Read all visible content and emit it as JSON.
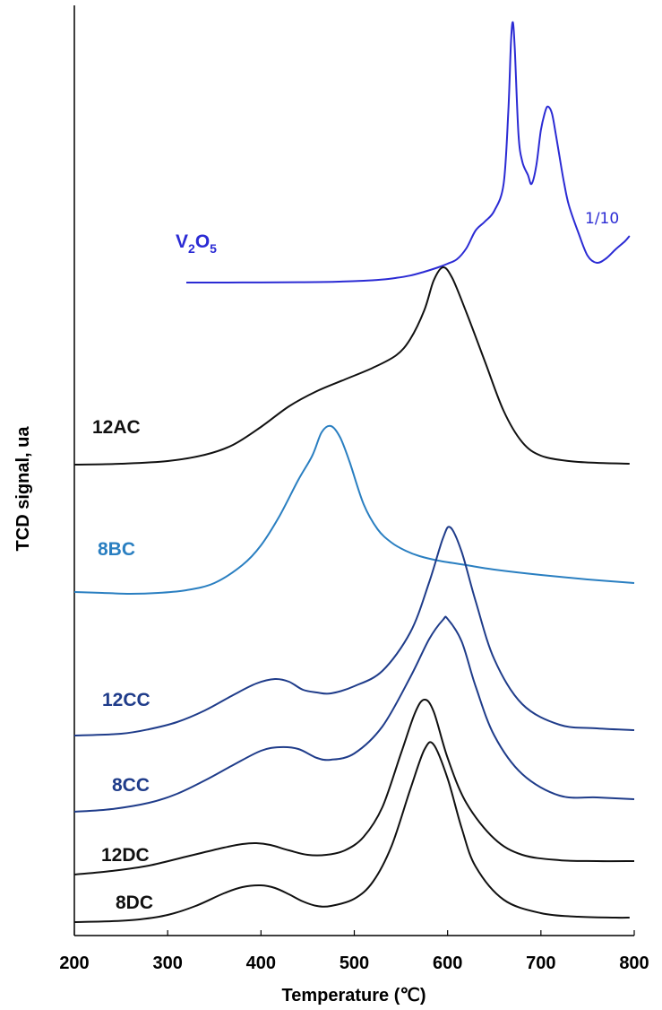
{
  "chart_data": {
    "type": "line",
    "title": "",
    "xlabel": "Temperature (℃)",
    "ylabel": "TCD signal, ua",
    "xlim": [
      200,
      800
    ],
    "xticks": [
      "200",
      "300",
      "400",
      "500",
      "600",
      "700",
      "800"
    ],
    "y_ticks_shown": false,
    "grid": false,
    "legend": "none",
    "series": [
      {
        "name": "V2O5",
        "label_main": "V",
        "label_sub1": "2",
        "label_mid": "O",
        "label_sub2": "5",
        "scale_note": "1/10",
        "color": "#2b2bd4",
        "x": [
          320,
          380,
          440,
          480,
          510,
          530,
          545,
          560,
          575,
          590,
          600,
          610,
          620,
          630,
          640,
          650,
          660,
          665,
          668,
          670,
          672,
          676,
          680,
          686,
          690,
          695,
          700,
          705,
          708,
          712,
          716,
          720,
          725,
          730,
          740,
          750,
          760,
          770,
          780,
          790,
          795
        ],
        "y": [
          0,
          0.1,
          0.35,
          0.9,
          2.0,
          3.4,
          5.2,
          7.8,
          12.0,
          17.0,
          21.0,
          26.0,
          38.0,
          58.0,
          68.0,
          80.0,
          110.0,
          190.0,
          270.0,
          290.0,
          260.0,
          165.0,
          135.0,
          120.0,
          110.0,
          130.0,
          170.0,
          192.0,
          196.0,
          188.0,
          165.0,
          140.0,
          110.0,
          86.0,
          56.0,
          30.0,
          22.0,
          27.0,
          37.0,
          46.0,
          52.0
        ]
      },
      {
        "name": "12AC",
        "color": "#111111",
        "x": [
          200,
          250,
          300,
          340,
          370,
          400,
          430,
          460,
          490,
          520,
          545,
          560,
          575,
          585,
          595,
          605,
          620,
          640,
          660,
          680,
          700,
          730,
          760,
          795
        ],
        "y": [
          0,
          1,
          4,
          11,
          22,
          42,
          65,
          82,
          95,
          108,
          122,
          140,
          172,
          205,
          220,
          208,
          170,
          115,
          60,
          25,
          10,
          4,
          2,
          1
        ]
      },
      {
        "name": "8BC",
        "color": "#2a7fc1",
        "x": [
          200,
          230,
          260,
          290,
          320,
          350,
          380,
          400,
          420,
          440,
          455,
          465,
          475,
          485,
          495,
          510,
          525,
          540,
          555,
          570,
          590,
          620,
          650,
          700,
          750,
          800
        ],
        "y": [
          0,
          -1,
          -2,
          -1,
          2,
          10,
          30,
          52,
          85,
          125,
          152,
          178,
          185,
          172,
          145,
          98,
          70,
          55,
          46,
          40,
          35,
          30,
          25,
          19,
          14,
          10
        ]
      },
      {
        "name": "12CC",
        "color": "#1f3c8a",
        "x": [
          200,
          250,
          280,
          310,
          340,
          370,
          395,
          415,
          430,
          445,
          460,
          475,
          500,
          530,
          560,
          580,
          595,
          603,
          615,
          630,
          650,
          680,
          720,
          760,
          800
        ],
        "y": [
          0,
          2,
          7,
          15,
          28,
          45,
          58,
          63,
          60,
          51,
          48,
          47,
          55,
          72,
          115,
          170,
          220,
          232,
          205,
          150,
          85,
          35,
          12,
          8,
          6
        ]
      },
      {
        "name": "8CC",
        "color": "#1f3c8a",
        "x": [
          200,
          240,
          280,
          310,
          340,
          370,
          400,
          420,
          440,
          460,
          475,
          500,
          530,
          560,
          580,
          595,
          600,
          615,
          630,
          650,
          680,
          720,
          760,
          800
        ],
        "y": [
          0,
          3,
          10,
          20,
          35,
          52,
          68,
          72,
          70,
          60,
          58,
          65,
          95,
          150,
          192,
          214,
          215,
          190,
          140,
          85,
          42,
          18,
          16,
          14
        ]
      },
      {
        "name": "12DC",
        "color": "#111111",
        "x": [
          200,
          240,
          280,
          320,
          360,
          380,
          395,
          410,
          430,
          450,
          470,
          490,
          510,
          530,
          550,
          565,
          575,
          585,
          600,
          620,
          650,
          680,
          720,
          760,
          800
        ],
        "y": [
          0,
          4,
          10,
          20,
          30,
          34,
          35,
          33,
          27,
          22,
          22,
          27,
          42,
          75,
          135,
          180,
          195,
          182,
          130,
          80,
          40,
          22,
          16,
          15,
          15
        ]
      },
      {
        "name": "8DC",
        "color": "#111111",
        "x": [
          200,
          240,
          270,
          300,
          330,
          360,
          380,
          400,
          415,
          430,
          445,
          460,
          475,
          500,
          520,
          540,
          560,
          575,
          585,
          600,
          615,
          630,
          660,
          700,
          740,
          780,
          795
        ],
        "y": [
          0,
          1,
          3,
          8,
          18,
          32,
          39,
          41,
          38,
          31,
          23,
          18,
          18,
          26,
          45,
          85,
          148,
          192,
          198,
          160,
          105,
          62,
          25,
          10,
          6,
          5,
          5
        ]
      }
    ]
  }
}
